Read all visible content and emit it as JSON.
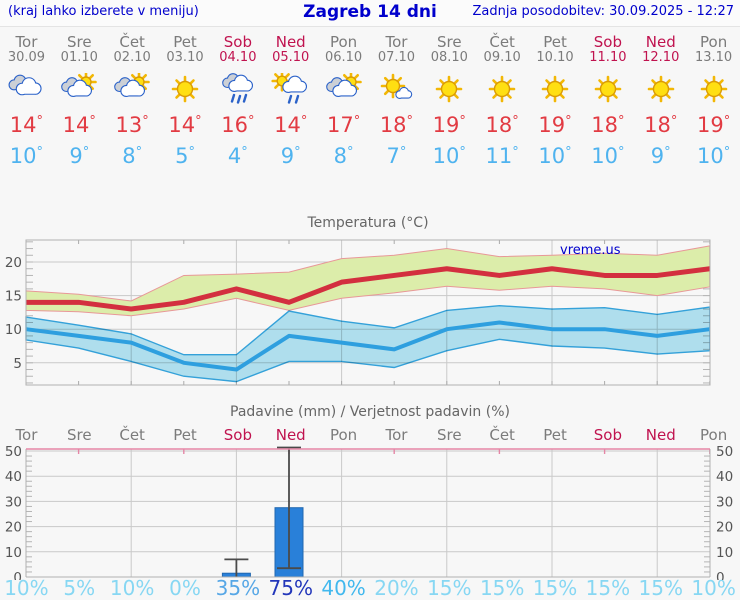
{
  "header": {
    "left": "(kraj lahko izberete v meniju)",
    "title": "Zagreb 14 dni",
    "right": "Zadnja posodobitev: 30.09.2025 - 12:27"
  },
  "colors": {
    "link_blue": "#0000cc",
    "day_gray": "#7b7b7b",
    "weekend_red": "#c0134f",
    "tmax_red": "#e23b43",
    "tmin_blue": "#4fb3ef",
    "max_line": "#d32f3f",
    "min_line": "#2e9fdf",
    "max_band_fill": "#dcedaa",
    "max_band_edge": "#e89898",
    "min_band_fill": "#b5e6f5",
    "min_band_edge": "#35a6e0",
    "bar_blue": "#2980d9",
    "bar_edge": "#2167b0",
    "whisker": "#4a4a4a",
    "grid": "#c9c9c9",
    "axis": "#b0b0b0",
    "pink_axis": "#e586a6",
    "tick_label": "#555555",
    "title_gray": "#666666",
    "prob_light": "#87d7f3"
  },
  "days": [
    {
      "name": "Tor",
      "date": "30.09",
      "weekend": false,
      "icon": "cloudy"
    },
    {
      "name": "Sre",
      "date": "01.10",
      "weekend": false,
      "icon": "partly-cloudy"
    },
    {
      "name": "Čet",
      "date": "02.10",
      "weekend": false,
      "icon": "partly-cloudy"
    },
    {
      "name": "Pet",
      "date": "03.10",
      "weekend": false,
      "icon": "sunny"
    },
    {
      "name": "Sob",
      "date": "04.10",
      "weekend": true,
      "icon": "rain"
    },
    {
      "name": "Ned",
      "date": "05.10",
      "weekend": true,
      "icon": "sun-rain"
    },
    {
      "name": "Pon",
      "date": "06.10",
      "weekend": false,
      "icon": "partly-cloudy"
    },
    {
      "name": "Tor",
      "date": "07.10",
      "weekend": false,
      "icon": "mostly-sunny"
    },
    {
      "name": "Sre",
      "date": "08.10",
      "weekend": false,
      "icon": "sunny"
    },
    {
      "name": "Čet",
      "date": "09.10",
      "weekend": false,
      "icon": "sunny"
    },
    {
      "name": "Pet",
      "date": "10.10",
      "weekend": false,
      "icon": "sunny"
    },
    {
      "name": "Sob",
      "date": "11.10",
      "weekend": true,
      "icon": "sunny"
    },
    {
      "name": "Ned",
      "date": "12.10",
      "weekend": true,
      "icon": "sunny"
    },
    {
      "name": "Pon",
      "date": "13.10",
      "weekend": false,
      "icon": "sunny"
    }
  ],
  "chart_data": [
    {
      "type": "line",
      "title": "Temperatura (°C)",
      "watermark": "vreme.us",
      "categories": [
        "Tor 30.09",
        "Sre 01.10",
        "Čet 02.10",
        "Pet 03.10",
        "Sob 04.10",
        "Ned 05.10",
        "Pon 06.10",
        "Tor 07.10",
        "Sre 08.10",
        "Čet 09.10",
        "Pet 10.10",
        "Sob 11.10",
        "Ned 12.10",
        "Pon 13.10"
      ],
      "series": [
        {
          "name": "max_temp",
          "values": [
            14,
            14,
            13,
            14,
            16,
            14,
            17,
            18,
            19,
            18,
            19,
            18,
            18,
            19
          ]
        },
        {
          "name": "max_band_upper",
          "values": [
            15.7,
            15.2,
            14.2,
            18.0,
            18.2,
            18.5,
            20.5,
            21.0,
            22.0,
            20.8,
            21.0,
            21.3,
            21.0,
            22.4
          ]
        },
        {
          "name": "max_band_lower",
          "values": [
            12.8,
            12.6,
            12.0,
            13.0,
            14.6,
            12.8,
            14.6,
            15.4,
            16.4,
            15.8,
            16.4,
            16.0,
            15.0,
            16.3
          ]
        },
        {
          "name": "min_temp",
          "values": [
            10,
            9,
            8,
            5,
            4,
            9,
            8,
            7,
            10,
            11,
            10,
            10,
            9,
            10
          ]
        },
        {
          "name": "min_band_upper",
          "values": [
            11.8,
            10.6,
            9.3,
            6.2,
            6.2,
            12.7,
            11.2,
            10.2,
            12.8,
            13.5,
            13.0,
            13.2,
            12.2,
            13.3
          ]
        },
        {
          "name": "min_band_lower",
          "values": [
            8.4,
            7.2,
            5.2,
            3.0,
            2.2,
            5.2,
            5.2,
            4.3,
            6.8,
            8.5,
            7.5,
            7.2,
            6.3,
            6.8
          ]
        }
      ],
      "ylim": [
        1.7,
        23.3
      ],
      "yticks": [
        5,
        10,
        15,
        20
      ],
      "grid": true,
      "legend": "none"
    },
    {
      "type": "bar",
      "title": "Padavine (mm) / Verjetnost padavin (%)",
      "categories": [
        "Tor",
        "Sre",
        "Čet",
        "Pet",
        "Sob",
        "Ned",
        "Pon",
        "Tor",
        "Sre",
        "Čet",
        "Pet",
        "Sob",
        "Ned",
        "Pon"
      ],
      "values_mm": [
        0,
        0,
        0,
        0,
        1.5,
        27.5,
        0,
        0,
        0,
        0,
        0,
        0,
        0,
        0
      ],
      "whiskers": [
        null,
        null,
        null,
        null,
        {
          "low": 0,
          "high": 7
        },
        {
          "low": 3.5,
          "high": 52
        },
        null,
        null,
        null,
        null,
        null,
        null,
        null,
        null
      ],
      "probabilities": [
        "10%",
        "5%",
        "10%",
        "0%",
        "35%",
        "75%",
        "40%",
        "20%",
        "15%",
        "15%",
        "15%",
        "15%",
        "15%",
        "10%"
      ],
      "probability_colors": [
        "#87d7f3",
        "#87d7f3",
        "#87d7f3",
        "#87d7f3",
        "#57a7e6",
        "#2236ba",
        "#41b8ee",
        "#87d7f3",
        "#87d7f3",
        "#87d7f3",
        "#87d7f3",
        "#87d7f3",
        "#87d7f3",
        "#87d7f3"
      ],
      "ylim": [
        0,
        52
      ],
      "yticks": [
        0,
        10,
        20,
        30,
        40,
        50
      ],
      "grid": true,
      "legend": "none"
    }
  ]
}
